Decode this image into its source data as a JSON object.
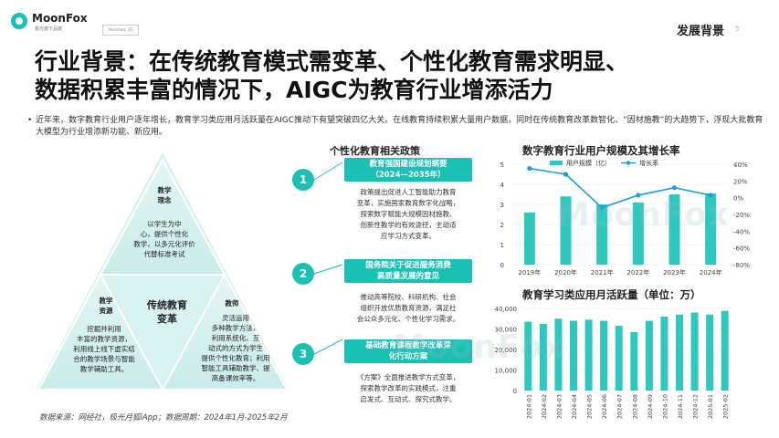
{
  "header": {
    "logo_text": "MoonFox",
    "logo_sub": "极光旗下品牌",
    "nasdaq": "Nasdaq: JG",
    "section": "发展背景",
    "page": "5"
  },
  "title_line1": "行业背景：在传统教育模式需变革、个性化教育需求明显、",
  "title_line2": "数据积累丰富的情况下，AIGC为教育行业增添活力",
  "bullet": "近年来，数字教育行业用户逐年增长，教育学习类应用月活跃量在AIGC推动下有望突破四亿大关。在线教育持续积累大量用户数据，同时在传统教育改革数智化、“因材施教”的大趋势下，浮现大批教育大模型为行业增添新功能、新应用。",
  "triangle": {
    "center": "传统教育\n变革",
    "top_head": "教学\n理念",
    "top_body": "以学生为中\n心，提供个性化\n教学，以多元化评价\n代替标准考试",
    "left_head": "教学\n资源",
    "left_body": "挖掘并利用\n丰富的教学资源，\n利用线上线下虚实结\n合的教学场景与智能\n教学辅助工具。",
    "right_head": "教师",
    "right_body": "灵活运用\n多种教学方法，\n利用系统化、互\n动式的方式为学生\n提供个性化教育；利用\n智能工具辅助教学、提\n高备课效率等。"
  },
  "policy": {
    "title": "个性化教育相关政策",
    "items": [
      {
        "num": "1",
        "head": "教育强国建设规划纲要\n（2024—2035年）",
        "body": "政策提出促进人工智能助力教育\n变革，实施国家教育数字化战略，\n探索数字赋能大规模因材施教、\n创新性教学的有效途径，主动适\n应学习方式变革。"
      },
      {
        "num": "2",
        "head": "国务院关于促进服务消费\n高质量发展的意见",
        "body": "推动高等院校、科研机构、社会\n组织开放优质教育资源，满足社\n会公众多元化、个性化学习需求。"
      },
      {
        "num": "3",
        "head": "基础教育课程教学改革深\n化行动方案",
        "body": "《方案》全面推进教学方式变革，\n探索教学改革的实践模式，注重\n启发式、互动式、探究式教学。"
      }
    ]
  },
  "chart_data": [
    {
      "type": "bar",
      "title": "数字教育行业用户规模及其增长率",
      "categories": [
        "2019年",
        "2020年",
        "2021年",
        "2022年",
        "2023年",
        "2024年"
      ],
      "series": [
        {
          "name": "用户规模（亿）",
          "type": "bar",
          "axis": "left",
          "values": [
            2.6,
            3.4,
            3.0,
            3.1,
            3.5,
            3.55
          ]
        },
        {
          "name": "增长率",
          "type": "line",
          "axis": "right",
          "values": [
            35,
            28,
            -12,
            3,
            12,
            3
          ]
        }
      ],
      "ylim": [
        0,
        5
      ],
      "yticks": [
        "0",
        "1",
        "2",
        "3",
        "4",
        "5"
      ],
      "y2lim": [
        -80,
        40
      ],
      "y2ticks": [
        "40%",
        "20%",
        "0%",
        "-20%",
        "-40%",
        "-60%",
        "-80%"
      ],
      "legend": "top",
      "colors": {
        "bar": "#2ec8bf",
        "line": "#1a9fd6"
      }
    },
    {
      "type": "bar",
      "title": "教育学习类应用月活跃量（单位：万）",
      "categories": [
        "2024-01",
        "2024-02",
        "2024-03",
        "2024-04",
        "2024-05",
        "2024-06",
        "2024-07",
        "2024-08",
        "2024-09",
        "2024-10",
        "2024-11",
        "2024-12",
        "2025-01",
        "2025-02"
      ],
      "values": [
        33500,
        32500,
        35000,
        34000,
        34500,
        34000,
        31500,
        28500,
        34000,
        36000,
        37000,
        38000,
        37000,
        38800
      ],
      "ylim": [
        0,
        40000
      ],
      "yticks": [
        "0",
        "10,000",
        "20,000",
        "30,000",
        "40,000"
      ],
      "colors": {
        "bar": "#2ec8bf"
      }
    }
  ],
  "source": "数据来源：网经社，极光月狐iApp；数据周期：2024年1月-2025年2月",
  "watermark": "MoonFox"
}
